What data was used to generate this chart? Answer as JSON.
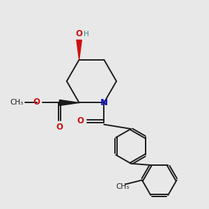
{
  "bg_color": "#e8e8e8",
  "bond_color": "#1a1a1a",
  "N_color": "#1111cc",
  "O_color": "#cc1111",
  "H_color": "#2e8b8b",
  "lw": 1.4,
  "fs": 8.5,
  "figsize": [
    3.0,
    3.0
  ],
  "dpi": 100,
  "xlim": [
    -0.9,
    3.1
  ],
  "ylim": [
    -1.2,
    2.8
  ]
}
